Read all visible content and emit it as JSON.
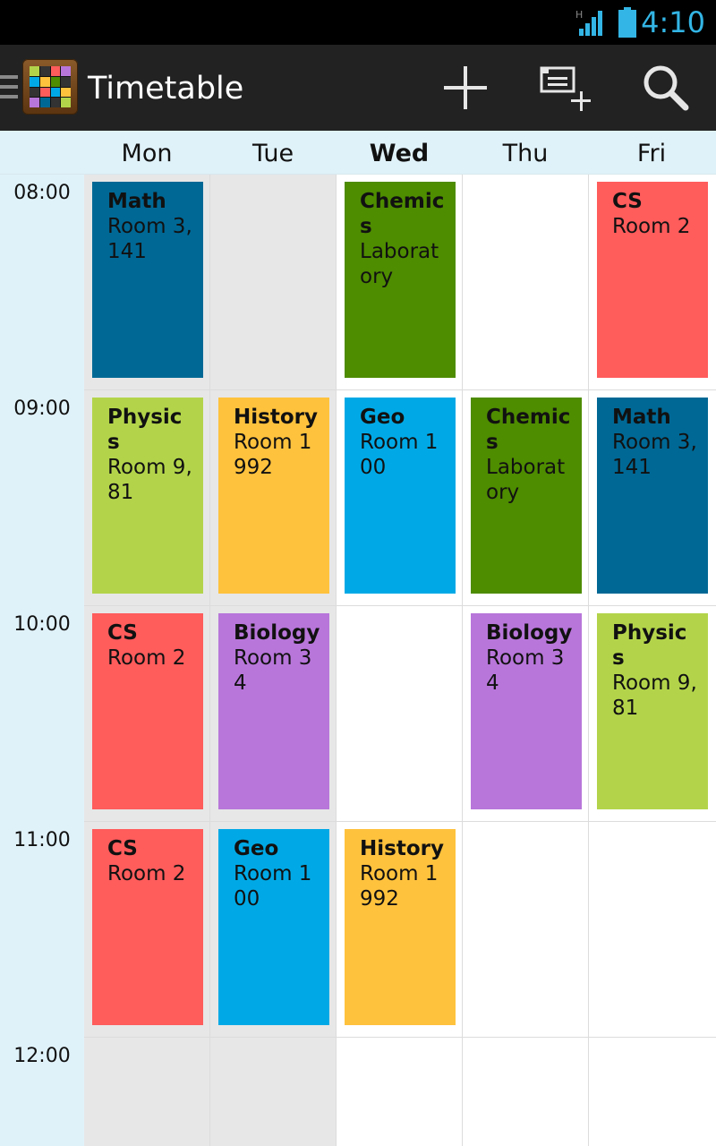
{
  "status_bar": {
    "network_label": "H",
    "time": "4:10"
  },
  "action_bar": {
    "title": "Timetable",
    "actions": [
      "add-icon",
      "add-event-icon",
      "search-icon"
    ]
  },
  "days": [
    {
      "label": "Mon",
      "today": false
    },
    {
      "label": "Tue",
      "today": false
    },
    {
      "label": "Wed",
      "today": true
    },
    {
      "label": "Thu",
      "today": false
    },
    {
      "label": "Fri",
      "today": false
    }
  ],
  "times": [
    "08:00",
    "09:00",
    "10:00",
    "11:00",
    "12:00"
  ],
  "colors": {
    "header_bg": "#e0f2f9",
    "past_day_bg": "#e7e7e7",
    "accent": "#33b5e5"
  },
  "lessons": [
    {
      "day": "Mon",
      "time": "08:00",
      "subject": "Math",
      "room": "Room 3,141",
      "color": "#006895"
    },
    {
      "day": "Wed",
      "time": "08:00",
      "subject": "Chemics",
      "room": "Laboratory",
      "color": "#4e8c00"
    },
    {
      "day": "Fri",
      "time": "08:00",
      "subject": "CS",
      "room": "Room 2",
      "color": "#ff5c5c"
    },
    {
      "day": "Mon",
      "time": "09:00",
      "subject": "Physics",
      "room": "Room 9,81",
      "color": "#b3d44a"
    },
    {
      "day": "Tue",
      "time": "09:00",
      "subject": "History",
      "room": "Room 1992",
      "color": "#ffc23d"
    },
    {
      "day": "Wed",
      "time": "09:00",
      "subject": "Geo",
      "room": "Room 100",
      "color": "#00a9e6"
    },
    {
      "day": "Thu",
      "time": "09:00",
      "subject": "Chemics",
      "room": "Laboratory",
      "color": "#4e8c00"
    },
    {
      "day": "Fri",
      "time": "09:00",
      "subject": "Math",
      "room": "Room 3,141",
      "color": "#006895"
    },
    {
      "day": "Mon",
      "time": "10:00",
      "subject": "CS",
      "room": "Room 2",
      "color": "#ff5c5c"
    },
    {
      "day": "Tue",
      "time": "10:00",
      "subject": "Biology",
      "room": "Room 34",
      "color": "#b876da"
    },
    {
      "day": "Thu",
      "time": "10:00",
      "subject": "Biology",
      "room": "Room 34",
      "color": "#b876da"
    },
    {
      "day": "Fri",
      "time": "10:00",
      "subject": "Physics",
      "room": "Room 9,81",
      "color": "#b3d44a"
    },
    {
      "day": "Mon",
      "time": "11:00",
      "subject": "CS",
      "room": "Room 2",
      "color": "#ff5c5c"
    },
    {
      "day": "Tue",
      "time": "11:00",
      "subject": "Geo",
      "room": "Room 100",
      "color": "#00a9e6"
    },
    {
      "day": "Wed",
      "time": "11:00",
      "subject": "History",
      "room": "Room 1992",
      "color": "#ffc23d"
    }
  ]
}
